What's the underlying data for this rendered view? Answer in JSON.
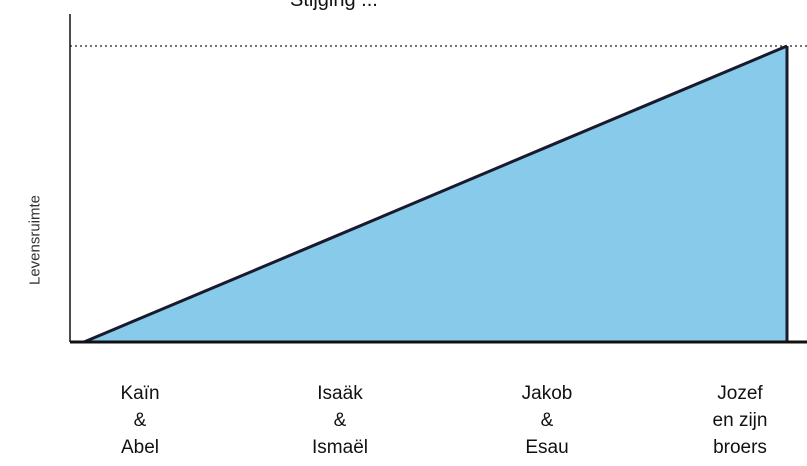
{
  "chart_data": {
    "type": "area",
    "title": "Stijging ...",
    "xlabel": "",
    "ylabel": "Levensruimte",
    "categories": [
      [
        "Kaïn",
        "&",
        "Abel"
      ],
      [
        "Isaäk",
        "&",
        "Ismaël"
      ],
      [
        "Jakob",
        "&",
        "Esau"
      ],
      [
        "Jozef",
        "en zijn",
        "broers"
      ]
    ],
    "x": [
      0,
      1,
      2,
      3
    ],
    "values": [
      0,
      0.333,
      0.667,
      1.0
    ],
    "ylim": [
      0,
      1.0
    ],
    "reference_line": 1.0,
    "grid": false,
    "legend": "none",
    "fill_color": "#87CAEA",
    "line_color": "#1a1a2e"
  }
}
